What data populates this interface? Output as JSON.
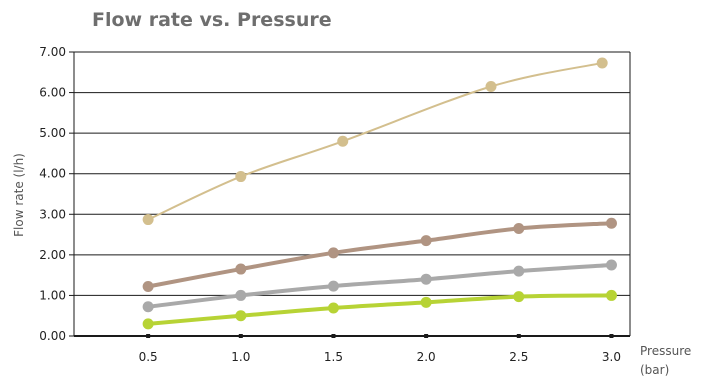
{
  "chart_data": {
    "type": "line",
    "title": "Flow rate vs. Pressure",
    "xlabel": [
      "Pressure",
      "(bar)"
    ],
    "ylabel": "Flow rate (l/h)",
    "xlim": [
      0.1,
      3.1
    ],
    "ylim": [
      0,
      7
    ],
    "x_ticks": [
      "0.5",
      "1.0",
      "1.5",
      "2.0",
      "2.5",
      "3.0"
    ],
    "y_ticks": [
      "0.00",
      "1.00",
      "2.00",
      "3.00",
      "4.00",
      "5.00",
      "6.00",
      "7.00"
    ],
    "grid": "horizontal",
    "legend": "none",
    "series": [
      {
        "color": "#d3bf8e",
        "width": 2,
        "x": [
          0.5,
          1.0,
          1.55,
          2.35,
          2.95
        ],
        "values": [
          2.87,
          3.93,
          4.8,
          6.15,
          6.73
        ]
      },
      {
        "color": "#b09482",
        "width": 4,
        "x": [
          0.5,
          1.0,
          1.5,
          2.0,
          2.5,
          3.0
        ],
        "values": [
          1.22,
          1.65,
          2.05,
          2.35,
          2.65,
          2.78
        ]
      },
      {
        "color": "#a9a9a9",
        "width": 4,
        "x": [
          0.5,
          1.0,
          1.5,
          2.0,
          2.5,
          3.0
        ],
        "values": [
          0.72,
          1.0,
          1.23,
          1.4,
          1.6,
          1.75
        ]
      },
      {
        "color": "#b7d335",
        "width": 4,
        "x": [
          0.5,
          1.0,
          1.5,
          2.0,
          2.5,
          3.0
        ],
        "values": [
          0.3,
          0.5,
          0.69,
          0.83,
          0.97,
          1.0
        ]
      }
    ]
  }
}
